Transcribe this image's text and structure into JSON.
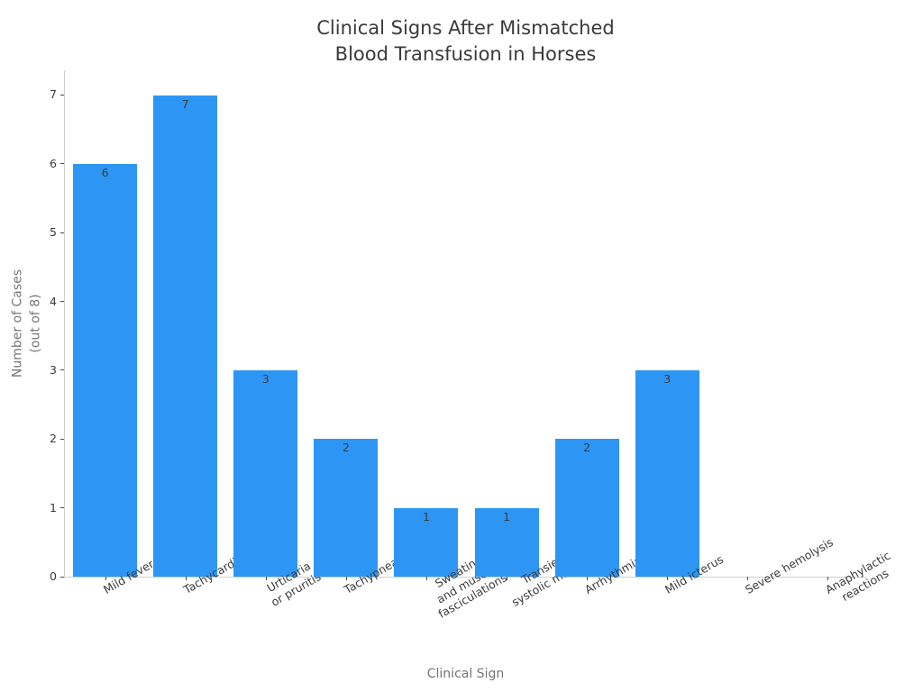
{
  "chart_data": {
    "type": "bar",
    "title": "Clinical Signs After Mismatched\nBlood Transfusion in Horses",
    "xlabel": "Clinical Sign",
    "ylabel": "Number of Cases\n(out of 8)",
    "categories": [
      "Mild fever",
      "Tachycardia",
      "Urticaria\nor pruritis",
      "Tachypnea",
      "Sweating\nand muscle\nfasciculations",
      "Transient\nsystolic murmur",
      "Arrhythmia",
      "Mild icterus",
      "Severe hemolysis",
      "Anaphylactic\nreactions"
    ],
    "values": [
      6,
      7,
      3,
      2,
      1,
      1,
      2,
      3,
      0,
      0
    ],
    "yticks": [
      0,
      1,
      2,
      3,
      4,
      5,
      6,
      7
    ],
    "ylim": [
      0,
      7.36
    ],
    "grid": false,
    "legend_position": "none",
    "bar_color": "#2D96F5",
    "text_color": "#3a3a3a",
    "muted_text_color": "#757575",
    "spine_color": "#cfcfcf",
    "tick_color": "#4d4d4d"
  }
}
